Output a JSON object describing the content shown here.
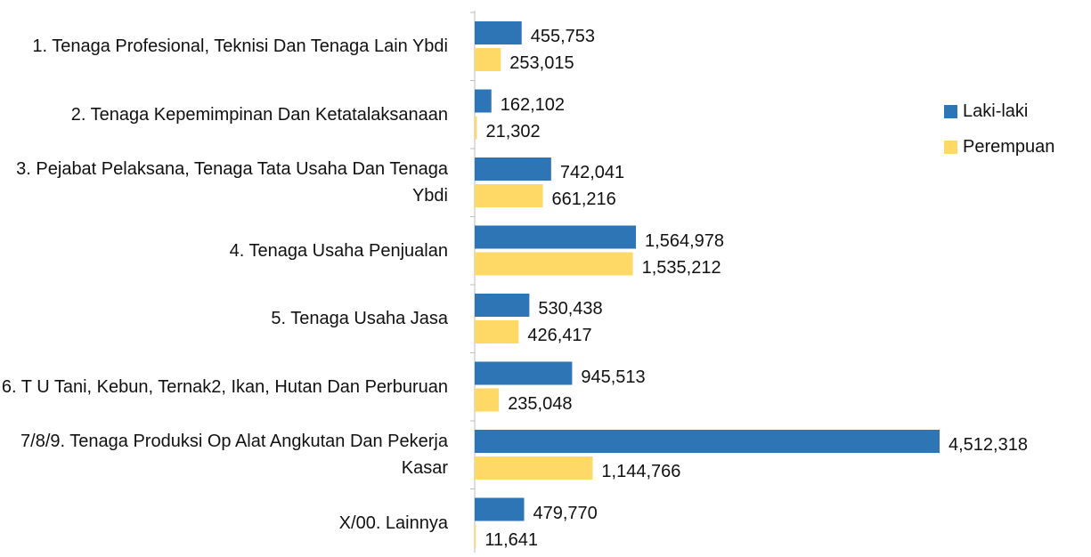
{
  "chart_data": {
    "type": "bar",
    "orientation": "horizontal",
    "categories": [
      "1. Tenaga Profesional, Teknisi Dan Tenaga Lain Ybdi",
      "2. Tenaga Kepemimpinan Dan Ketatalaksanaan",
      "3. Pejabat Pelaksana, Tenaga Tata Usaha Dan Tenaga Ybdi",
      "4. Tenaga Usaha Penjualan",
      "5. Tenaga Usaha Jasa",
      "6. T U Tani, Kebun, Ternak2, Ikan, Hutan Dan Perburuan",
      "7/8/9. Tenaga Produksi Op Alat Angkutan Dan Pekerja Kasar",
      "X/00. Lainnya"
    ],
    "series": [
      {
        "name": "Laki-laki",
        "color": "#2e75b6",
        "values": [
          455753,
          162102,
          742041,
          1564978,
          530438,
          945513,
          4512318,
          479770
        ],
        "value_labels": [
          "455,753",
          "162,102",
          "742,041",
          "1,564,978",
          "530,438",
          "945,513",
          "4,512,318",
          "479,770"
        ]
      },
      {
        "name": "Perempuan",
        "color": "#ffd966",
        "values": [
          253015,
          21302,
          661216,
          1535212,
          426417,
          235048,
          1144766,
          11641
        ],
        "value_labels": [
          "253,015",
          "21,302",
          "661,216",
          "1,535,212",
          "426,417",
          "235,048",
          "1,144,766",
          "11,641"
        ]
      }
    ],
    "legend": "right"
  }
}
